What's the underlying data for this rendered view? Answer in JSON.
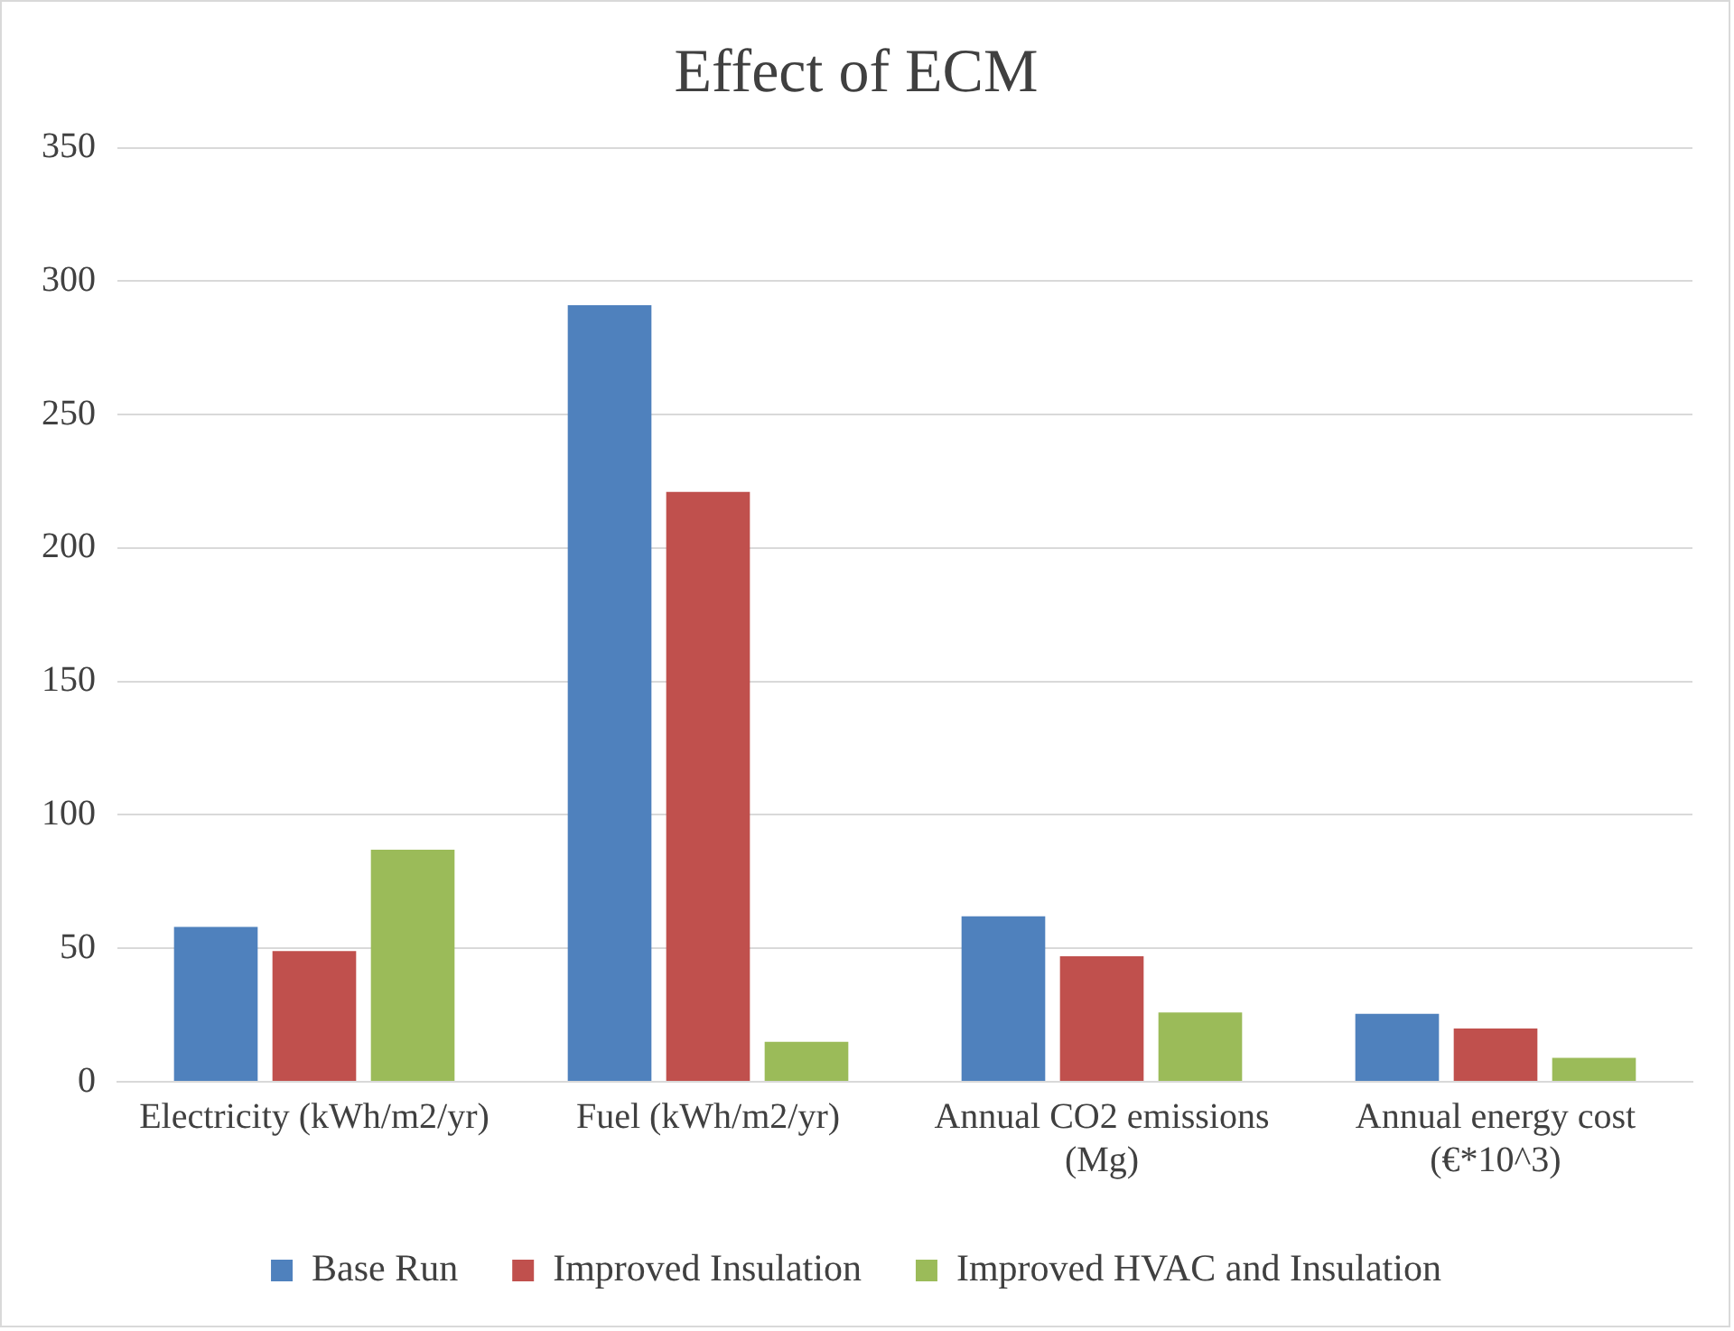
{
  "chart_data": {
    "type": "bar",
    "title": "Effect of ECM",
    "categories": [
      "Electricity (kWh/m2/yr)",
      "Fuel (kWh/m2/yr)",
      "Annual CO2 emissions (Mg)",
      "Annual energy cost (€*10^3)"
    ],
    "series": [
      {
        "name": "Base Run",
        "color": "#4f81bd",
        "values": [
          58,
          291,
          62,
          25.5
        ]
      },
      {
        "name": "Improved Insulation",
        "color": "#c0504d",
        "values": [
          49,
          221,
          47,
          20
        ]
      },
      {
        "name": "Improved HVAC and Insulation",
        "color": "#9bbb59",
        "values": [
          87,
          15,
          26,
          9
        ]
      }
    ],
    "ylim": [
      0,
      350
    ],
    "yticks": [
      0,
      50,
      100,
      150,
      200,
      250,
      300,
      350
    ],
    "grid": "y",
    "legend": "bottom"
  }
}
